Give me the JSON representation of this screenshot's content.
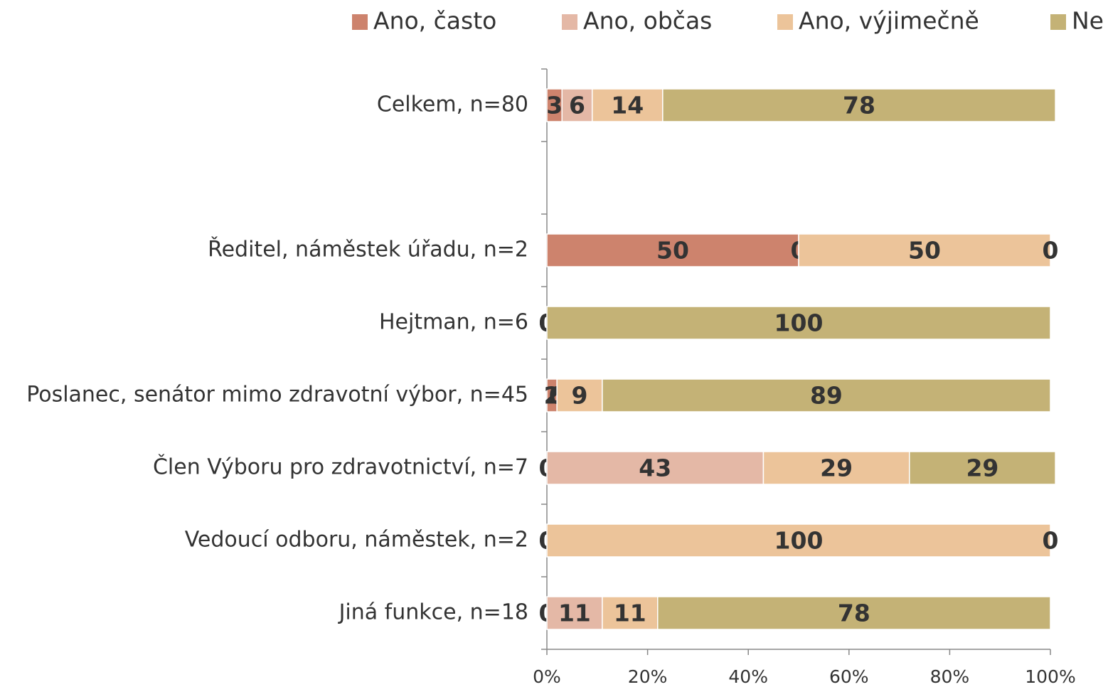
{
  "chart_data": {
    "type": "stacked_barh",
    "categories": [
      "Celkem, n=80",
      null,
      "Ředitel, náměstek úřadu, n=2",
      "Hejtman, n=6",
      "Poslanec, senátor mimo zdravotní výbor, n=45",
      "Člen Výboru pro zdravotnictví, n=7",
      "Vedoucí odboru, náměstek, n=2",
      "Jiná funkce, n=18"
    ],
    "series": [
      {
        "name": "Ano, často",
        "color": "#cd836d",
        "values": [
          3,
          null,
          50,
          0,
          2,
          0,
          0,
          0
        ]
      },
      {
        "name": "Ano, občas",
        "color": "#e4b8a6",
        "values": [
          6,
          null,
          0,
          0,
          0,
          43,
          0,
          11
        ]
      },
      {
        "name": "Ano, výjimečně",
        "color": "#ecc49a",
        "values": [
          14,
          null,
          50,
          0,
          9,
          29,
          100,
          11
        ]
      },
      {
        "name": "Ne",
        "color": "#c4b276",
        "values": [
          78,
          null,
          0,
          100,
          89,
          29,
          0,
          78
        ]
      }
    ],
    "xlim": [
      0,
      100
    ],
    "xticks": [
      {
        "value": 0,
        "label": "0%"
      },
      {
        "value": 20,
        "label": "20%"
      },
      {
        "value": 40,
        "label": "40%"
      },
      {
        "value": 60,
        "label": "60%"
      },
      {
        "value": 80,
        "label": "80%"
      },
      {
        "value": 100,
        "label": "100%"
      }
    ],
    "legend": "top"
  }
}
